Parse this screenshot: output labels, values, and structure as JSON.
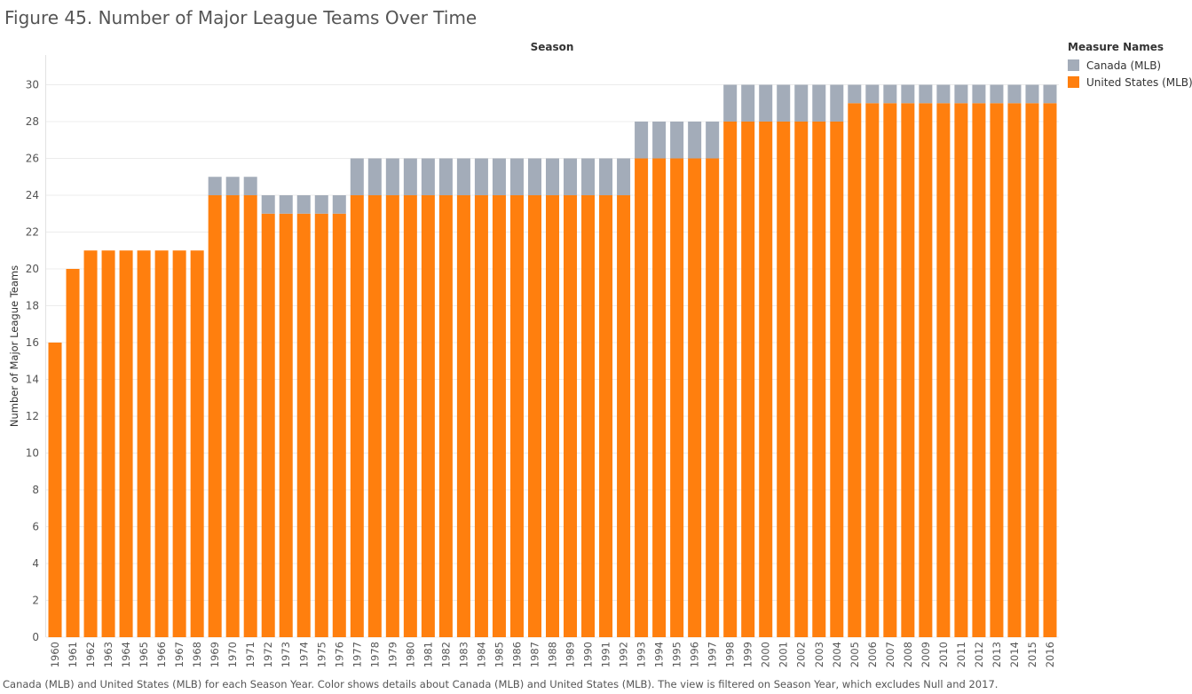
{
  "title": "Figure 45. Number of Major League Teams Over Time",
  "caption": "Canada (MLB) and United States (MLB) for each Season Year.  Color shows details about Canada (MLB) and United States (MLB). The view is filtered on Season Year, which excludes Null and 2017.",
  "legend": {
    "title": "Measure Names",
    "items": [
      {
        "label": "Canada (MLB)",
        "color": "#a3acb9"
      },
      {
        "label": "United States (MLB)",
        "color": "#ff7f0e"
      }
    ]
  },
  "chart_data": {
    "type": "bar",
    "stacked": true,
    "xlabel": "Season",
    "ylabel": "Number of Major League Teams",
    "ylim": [
      0,
      31
    ],
    "yticks": [
      0,
      2,
      4,
      6,
      8,
      10,
      12,
      14,
      16,
      18,
      20,
      22,
      24,
      26,
      28,
      30
    ],
    "grid": true,
    "legend_position": "right",
    "categories": [
      "1960",
      "1961",
      "1962",
      "1963",
      "1964",
      "1965",
      "1966",
      "1967",
      "1968",
      "1969",
      "1970",
      "1971",
      "1972",
      "1973",
      "1974",
      "1975",
      "1976",
      "1977",
      "1978",
      "1979",
      "1980",
      "1981",
      "1982",
      "1983",
      "1984",
      "1985",
      "1986",
      "1987",
      "1988",
      "1989",
      "1990",
      "1991",
      "1992",
      "1993",
      "1994",
      "1995",
      "1996",
      "1997",
      "1998",
      "1999",
      "2000",
      "2001",
      "2002",
      "2003",
      "2004",
      "2005",
      "2006",
      "2007",
      "2008",
      "2009",
      "2010",
      "2011",
      "2012",
      "2013",
      "2014",
      "2015",
      "2016"
    ],
    "series": [
      {
        "name": "United States (MLB)",
        "color": "#ff7f0e",
        "values": [
          16,
          20,
          21,
          21,
          21,
          21,
          21,
          21,
          21,
          24,
          24,
          24,
          23,
          23,
          23,
          23,
          23,
          24,
          24,
          24,
          24,
          24,
          24,
          24,
          24,
          24,
          24,
          24,
          24,
          24,
          24,
          24,
          24,
          26,
          26,
          26,
          26,
          26,
          28,
          28,
          28,
          28,
          28,
          28,
          28,
          29,
          29,
          29,
          29,
          29,
          29,
          29,
          29,
          29,
          29,
          29,
          29
        ]
      },
      {
        "name": "Canada (MLB)",
        "color": "#a3acb9",
        "values": [
          0,
          0,
          0,
          0,
          0,
          0,
          0,
          0,
          0,
          1,
          1,
          1,
          1,
          1,
          1,
          1,
          1,
          2,
          2,
          2,
          2,
          2,
          2,
          2,
          2,
          2,
          2,
          2,
          2,
          2,
          2,
          2,
          2,
          2,
          2,
          2,
          2,
          2,
          2,
          2,
          2,
          2,
          2,
          2,
          2,
          1,
          1,
          1,
          1,
          1,
          1,
          1,
          1,
          1,
          1,
          1,
          1
        ]
      }
    ]
  }
}
